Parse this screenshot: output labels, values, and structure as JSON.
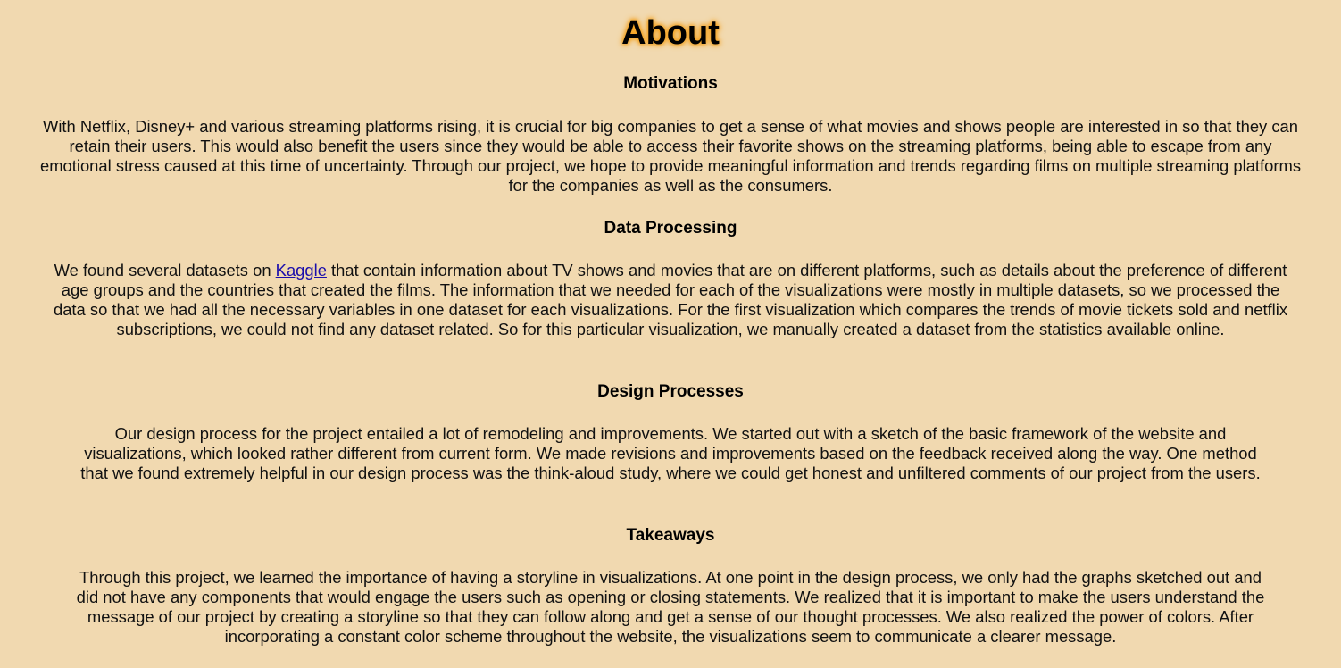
{
  "page": {
    "title": "About"
  },
  "sections": {
    "motivations": {
      "heading": "Motivations",
      "body": "With Netflix, Disney+ and various streaming platforms rising, it is crucial for big companies to get a sense of what movies and shows people are interested in so that they can retain their users. This would also benefit the users since they would be able to access their favorite shows on the streaming platforms, being able to escape from any emotional stress caused at this time of uncertainty. Through our project, we hope to provide meaningful information and trends regarding films on multiple streaming platforms for the companies as well as the consumers."
    },
    "data_processing": {
      "heading": "Data Processing",
      "body_before_link": "We found several datasets on ",
      "link_text": "Kaggle",
      "body_after_link": " that contain information about TV shows and movies that are on different platforms, such as details about the preference of different age groups and the countries that created the films. The information that we needed for each of the visualizations were mostly in multiple datasets, so we processed the data so that we had all the necessary variables in one dataset for each visualizations. For the first visualization which compares the trends of movie tickets sold and netflix subscriptions, we could not find any dataset related. So for this particular visualization, we manually created a dataset from the statistics available online."
    },
    "design_processes": {
      "heading": "Design Processes",
      "body": "Our design process for the project entailed a lot of remodeling and improvements. We started out with a sketch of the basic framework of the website and visualizations, which looked rather different from current form. We made revisions and improvements based on the feedback received along the way. One method that we found extremely helpful in our design process was the think-aloud study, where we could get honest and unfiltered comments of our project from the users."
    },
    "takeaways": {
      "heading": "Takeaways",
      "body": "Through this project, we learned the importance of having a storyline in visualizations. At one point in the design process, we only had the graphs sketched out and did not have any components that would engage the users such as opening or closing statements. We realized that it is important to make the users understand the message of our project by creating a storyline so that they can follow along and get a sense of our thought processes. We also realized the power of colors. After incorporating a constant color scheme throughout the website, the visualizations seem to communicate a clearer message."
    }
  },
  "colors": {
    "background": "#f1d9b0",
    "title_glow": "#f4a21f",
    "link": "#1a0dab"
  }
}
